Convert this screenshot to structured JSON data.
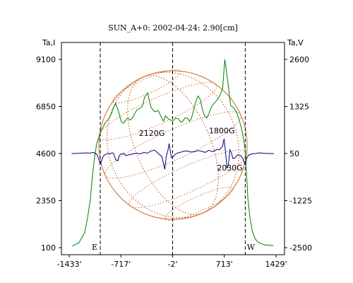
{
  "chart_data": {
    "type": "line",
    "title": "SUN_A+0: 2002-04-24: 2.90[cm]",
    "left_axis_label": "Ta,I",
    "right_axis_label": "Ta,V",
    "x_ticks": [
      -1433,
      -717,
      -2,
      713,
      1429
    ],
    "x_tick_labels": [
      "-1433'",
      "-717'",
      "-2'",
      "713'",
      "1429'"
    ],
    "xlim": [
      -1433,
      1429
    ],
    "left_ticks": [
      100,
      2350,
      4600,
      6850,
      9100
    ],
    "left_tick_labels": [
      "100",
      "2350",
      "4600",
      "6850",
      "9100"
    ],
    "left_ylim": [
      100,
      9100
    ],
    "right_ticks": [
      -2500,
      -1225,
      50,
      1325,
      2600
    ],
    "right_tick_labels": [
      "-2500",
      "-1225",
      "50",
      "1325",
      "2600"
    ],
    "right_ylim": [
      -2500,
      2600
    ],
    "limb_markers": [
      {
        "x": -1003,
        "label": "E"
      },
      {
        "x": -2,
        "label": ""
      },
      {
        "x": 1003,
        "label": "W"
      }
    ],
    "annotations": [
      {
        "text": "2120G",
        "x": -290,
        "y_I": 5450
      },
      {
        "text": "1800G",
        "x": 680,
        "y_I": 5560
      },
      {
        "text": "2030G",
        "x": 790,
        "y_I": 3780
      }
    ],
    "series": [
      {
        "color": "#008000",
        "axis": "left",
        "x": [
          -1390,
          -1300,
          -1220,
          -1180,
          -1140,
          -1115,
          -1090,
          -1070,
          -1050,
          -1030,
          -1010,
          -990,
          -960,
          -930,
          -900,
          -870,
          -850,
          -820,
          -790,
          -770,
          -740,
          -710,
          -680,
          -650,
          -620,
          -590,
          -560,
          -520,
          -490,
          -460,
          -420,
          -390,
          -350,
          -300,
          -250,
          -200,
          -160,
          -130,
          -100,
          -60,
          -30,
          0,
          40,
          80,
          110,
          140,
          170,
          200,
          230,
          260,
          290,
          320,
          350,
          380,
          410,
          440,
          470,
          500,
          530,
          560,
          600,
          640,
          690,
          720,
          740,
          760,
          780,
          800,
          840,
          880,
          920,
          950,
          980,
          1000,
          1020,
          1040,
          1070,
          1100,
          1140,
          1180,
          1230,
          1280,
          1340,
          1390
        ],
        "values": [
          170,
          330,
          800,
          1500,
          2400,
          3400,
          4200,
          4700,
          5100,
          5300,
          5500,
          5700,
          5900,
          6100,
          6200,
          6350,
          6500,
          6800,
          7000,
          6800,
          6500,
          6100,
          6050,
          6200,
          6300,
          6200,
          6300,
          6550,
          6700,
          6750,
          6850,
          7300,
          7500,
          6800,
          6600,
          6650,
          6350,
          6150,
          6400,
          6250,
          6200,
          6150,
          6300,
          6250,
          6100,
          6150,
          6300,
          6300,
          6150,
          6300,
          6700,
          7100,
          7350,
          7200,
          6700,
          6400,
          6300,
          6500,
          6800,
          6950,
          7100,
          7300,
          7700,
          9100,
          8600,
          8100,
          7500,
          6900,
          6800,
          6600,
          6200,
          5800,
          5300,
          4800,
          3700,
          2400,
          1500,
          900,
          520,
          360,
          280,
          230,
          210,
          200
        ]
      },
      {
        "color": "#00007f",
        "axis": "right",
        "x": [
          -1400,
          -1300,
          -1200,
          -1150,
          -1100,
          -1050,
          -1020,
          -1003,
          -990,
          -970,
          -950,
          -920,
          -900,
          -870,
          -840,
          -820,
          -790,
          -760,
          -740,
          -720,
          -700,
          -680,
          -650,
          -600,
          -550,
          -500,
          -450,
          -400,
          -350,
          -300,
          -250,
          -200,
          -150,
          -110,
          -90,
          -70,
          -50,
          -20,
          0,
          30,
          60,
          100,
          150,
          200,
          250,
          300,
          350,
          400,
          450,
          500,
          550,
          600,
          650,
          690,
          710,
          730,
          750,
          770,
          790,
          810,
          830,
          860,
          900,
          940,
          970,
          990,
          1003,
          1020,
          1050,
          1100,
          1150,
          1200,
          1300,
          1400
        ],
        "values": [
          50,
          55,
          70,
          60,
          80,
          30,
          -120,
          -250,
          -180,
          -60,
          0,
          30,
          60,
          40,
          70,
          60,
          -120,
          -150,
          -10,
          40,
          30,
          60,
          -10,
          20,
          40,
          60,
          40,
          80,
          60,
          120,
          140,
          50,
          -30,
          -380,
          -20,
          100,
          320,
          -60,
          -40,
          20,
          60,
          80,
          110,
          120,
          90,
          100,
          130,
          110,
          80,
          140,
          100,
          150,
          160,
          250,
          450,
          100,
          -350,
          -250,
          150,
          80,
          -80,
          -70,
          20,
          -10,
          -80,
          -210,
          -250,
          -90,
          10,
          40,
          50,
          70,
          50,
          50
        ]
      }
    ]
  }
}
